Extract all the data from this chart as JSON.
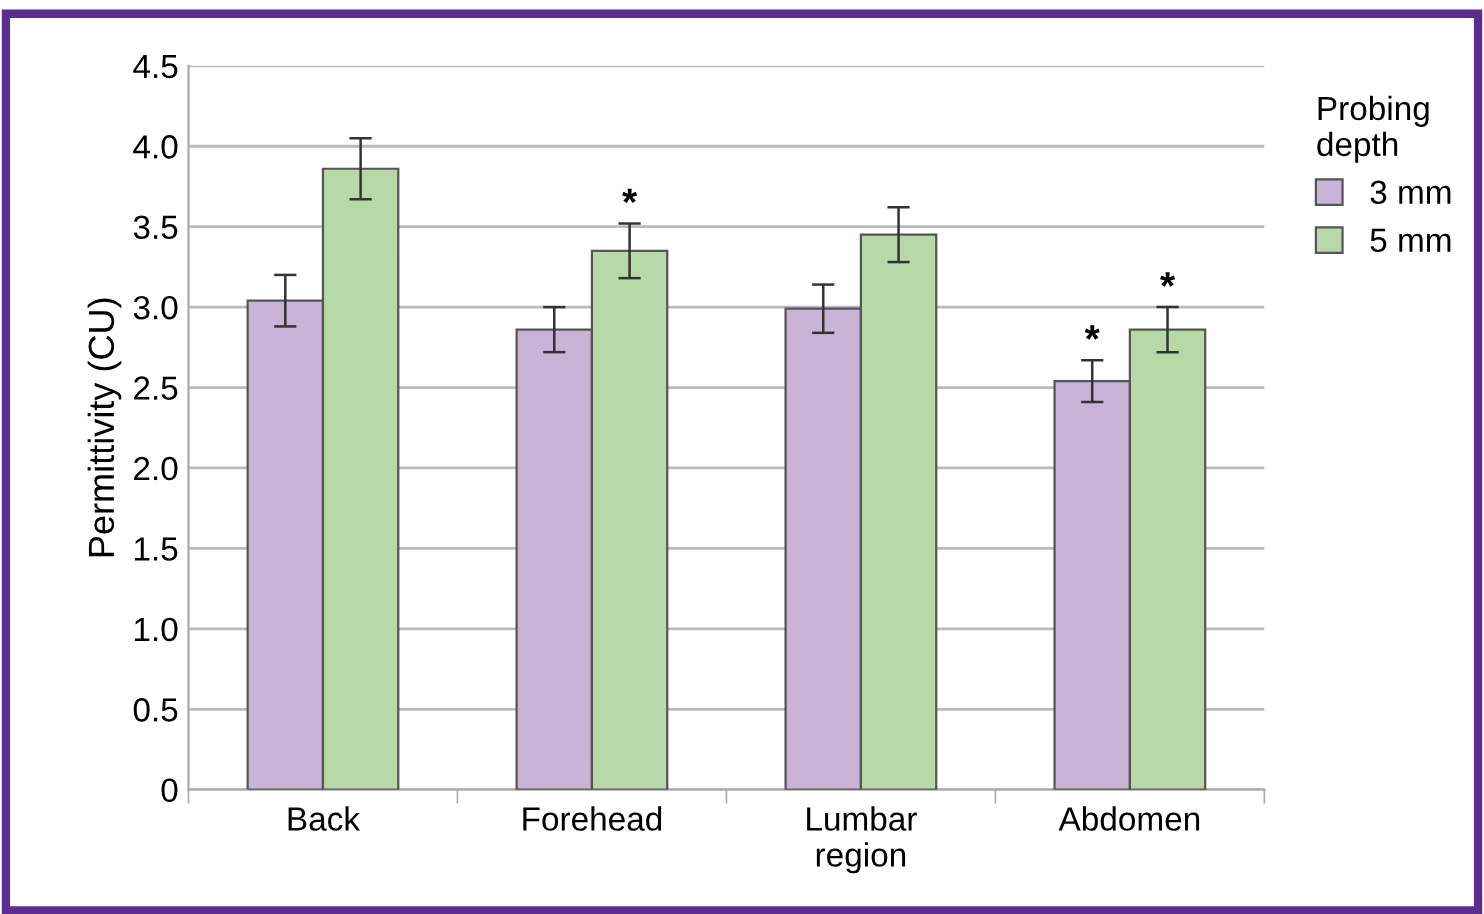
{
  "chart_data": {
    "type": "bar",
    "ylabel": "Permittivity (CU)",
    "legend_title": "Probing\ndepth",
    "categories": [
      "Back",
      "Forehead",
      "Lumbar\nregion",
      "Abdomen"
    ],
    "series": [
      {
        "name": "3 mm",
        "color": "#c9b3d6",
        "values": [
          3.04,
          2.86,
          2.99,
          2.54
        ],
        "errors": [
          0.16,
          0.14,
          0.15,
          0.13
        ]
      },
      {
        "name": "5 mm",
        "color": "#b7d9a7",
        "values": [
          3.86,
          3.35,
          3.45,
          2.86
        ],
        "errors": [
          0.19,
          0.17,
          0.17,
          0.14
        ]
      }
    ],
    "ylim": [
      0,
      4.5
    ],
    "yticks": [
      {
        "value": 0,
        "label": "0"
      },
      {
        "value": 0.5,
        "label": "0.5"
      },
      {
        "value": 1,
        "label": "1.0"
      },
      {
        "value": 1.5,
        "label": "1.5"
      },
      {
        "value": 2,
        "label": "2.0"
      },
      {
        "value": 2.5,
        "label": "2.5"
      },
      {
        "value": 3,
        "label": "3.0"
      },
      {
        "value": 3.5,
        "label": "3.5"
      },
      {
        "value": 4,
        "label": "4.0"
      },
      {
        "value": 4.5,
        "label": "4.5"
      }
    ],
    "annotations": [
      {
        "text": "*",
        "x": "Forehead",
        "y": 3.35
      },
      {
        "text": "*",
        "x": "Abdomen",
        "y": 2.54
      },
      {
        "text": "*",
        "x": "Abdomen",
        "y": 2.86
      }
    ],
    "grid": "y",
    "legend": "top right"
  }
}
